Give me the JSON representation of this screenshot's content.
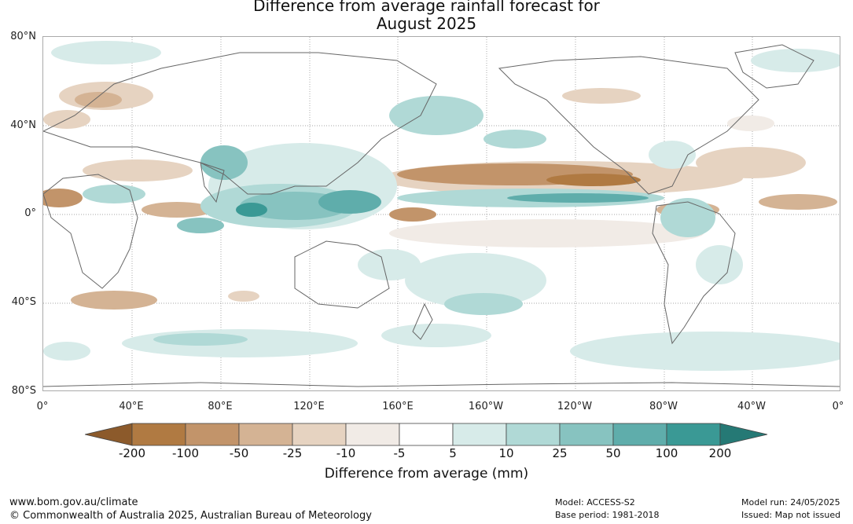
{
  "title_line1": "Difference from average rainfall forecast for",
  "title_line2": "August 2025",
  "lat_labels": [
    "80°N",
    "40°N",
    "0°",
    "40°S",
    "80°S"
  ],
  "lon_labels": [
    "0°",
    "40°E",
    "80°E",
    "120°E",
    "160°E",
    "160°W",
    "120°W",
    "80°W",
    "40°W",
    "0°"
  ],
  "legend": {
    "title": "Difference from average (mm)",
    "ticks": [
      "-200",
      "-100",
      "-50",
      "-25",
      "-10",
      "-5",
      "5",
      "10",
      "25",
      "50",
      "100",
      "200"
    ],
    "colors": [
      "#8c5a2b",
      "#b07a42",
      "#c2946a",
      "#d4b394",
      "#e6d3c1",
      "#f1ebe6",
      "#ffffff",
      "#d7ebe9",
      "#b0d9d6",
      "#87c3c0",
      "#5fadab",
      "#3a9995",
      "#257975"
    ]
  },
  "footer": {
    "url": "www.bom.gov.au/climate",
    "copyright": "© Commonwealth of Australia 2025, Australian Bureau of Meteorology",
    "model": "Model: ACCESS-S2",
    "base_period": "Base period: 1981-2018",
    "model_run": "Model run: 24/05/2025",
    "issued": "Issued: Map not issued"
  }
}
